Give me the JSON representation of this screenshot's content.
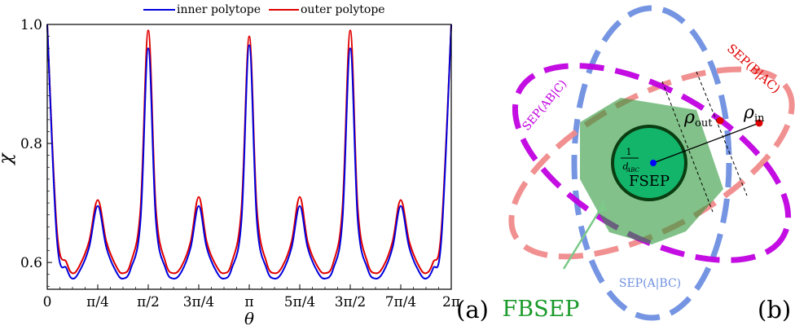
{
  "chart_data": [
    {
      "type": "line",
      "panel_label": "(a)",
      "xlabel": "θ",
      "ylabel": "χ",
      "xlim": [
        0,
        6.2832
      ],
      "ylim": [
        0.555,
        1.0
      ],
      "xticks": [
        {
          "value": 0,
          "label": "0"
        },
        {
          "value": 0.7854,
          "label": "π/4"
        },
        {
          "value": 1.5708,
          "label": "π/2"
        },
        {
          "value": 2.3562,
          "label": "3π/4"
        },
        {
          "value": 3.1416,
          "label": "π"
        },
        {
          "value": 3.927,
          "label": "5π/4"
        },
        {
          "value": 4.7124,
          "label": "3π/2"
        },
        {
          "value": 5.4978,
          "label": "7π/4"
        },
        {
          "value": 6.2832,
          "label": "2π"
        }
      ],
      "yticks": [
        {
          "value": 0.6,
          "label": "0.6"
        },
        {
          "value": 0.8,
          "label": "0.8"
        },
        {
          "value": 1.0,
          "label": "1.0"
        }
      ],
      "legend_position": "top-center",
      "grid": false,
      "series": [
        {
          "name": "inner polytope",
          "color": "#0000dd",
          "x": [
            0,
            0.15,
            0.3,
            0.393,
            0.5,
            0.65,
            0.7854,
            0.92,
            1.07,
            1.178,
            1.3,
            1.45,
            1.5708,
            1.69,
            1.84,
            1.963,
            2.09,
            2.23,
            2.3562,
            2.48,
            2.63,
            2.749,
            2.87,
            3.02,
            3.1416,
            3.26,
            3.41,
            3.534,
            3.66,
            3.8,
            3.927,
            4.05,
            4.2,
            4.32,
            4.45,
            4.59,
            4.7124,
            4.83,
            4.98,
            5.105,
            5.23,
            5.37,
            5.4978,
            5.63,
            5.78,
            5.89,
            6.0,
            6.13,
            6.2832
          ],
          "y": [
            1.0,
            0.64,
            0.59,
            0.573,
            0.585,
            0.625,
            0.695,
            0.625,
            0.585,
            0.573,
            0.59,
            0.67,
            0.96,
            0.67,
            0.59,
            0.573,
            0.585,
            0.625,
            0.695,
            0.625,
            0.585,
            0.573,
            0.59,
            0.67,
            0.965,
            0.67,
            0.59,
            0.573,
            0.585,
            0.625,
            0.695,
            0.625,
            0.585,
            0.573,
            0.59,
            0.67,
            0.96,
            0.67,
            0.59,
            0.573,
            0.585,
            0.625,
            0.695,
            0.625,
            0.585,
            0.573,
            0.59,
            0.64,
            1.0
          ]
        },
        {
          "name": "outer polytope",
          "color": "#e00000",
          "x": [
            0,
            0.15,
            0.3,
            0.393,
            0.5,
            0.65,
            0.7854,
            0.92,
            1.07,
            1.178,
            1.3,
            1.45,
            1.5708,
            1.69,
            1.84,
            1.963,
            2.09,
            2.23,
            2.3562,
            2.48,
            2.63,
            2.749,
            2.87,
            3.02,
            3.1416,
            3.26,
            3.41,
            3.534,
            3.66,
            3.8,
            3.927,
            4.05,
            4.2,
            4.32,
            4.45,
            4.59,
            4.7124,
            4.83,
            4.98,
            5.105,
            5.23,
            5.37,
            5.4978,
            5.63,
            5.78,
            5.89,
            6.0,
            6.13,
            6.2832
          ],
          "y": [
            1.0,
            0.655,
            0.6,
            0.582,
            0.594,
            0.635,
            0.705,
            0.635,
            0.594,
            0.582,
            0.6,
            0.69,
            0.99,
            0.69,
            0.6,
            0.582,
            0.594,
            0.635,
            0.71,
            0.635,
            0.594,
            0.582,
            0.6,
            0.69,
            0.98,
            0.69,
            0.6,
            0.582,
            0.594,
            0.635,
            0.71,
            0.635,
            0.594,
            0.582,
            0.6,
            0.69,
            0.99,
            0.69,
            0.6,
            0.582,
            0.594,
            0.635,
            0.705,
            0.635,
            0.594,
            0.582,
            0.6,
            0.655,
            1.0
          ]
        }
      ]
    }
  ],
  "diagram": {
    "panel_label": "(b)",
    "labels": {
      "sep_a_bc": "SEP(A|BC)",
      "sep_b_ac": "SEP(B|AC)",
      "sep_ab_c": "SEP(AB|C)",
      "fsep": "FSEP",
      "fbsep": "FBSEP",
      "rho_out": "ρ",
      "rho_out_sub": "out",
      "rho_in": "ρ",
      "rho_in_sub": "in",
      "center_num": "1",
      "center_den": "d",
      "center_den_sub": "ABC"
    },
    "colors": {
      "sep_a_bc": "#6e8fe0",
      "sep_b_ac": "#f08a8a",
      "sep_ab_c": "#c000e0",
      "fbsep_fill": "#2f9a3c",
      "fsep_fill": "#12b56a",
      "fsep_ring": "#0b3d12",
      "fbsep_label": "#1a9a2a",
      "points": "#e00000",
      "center_point": "#0000ff"
    }
  }
}
